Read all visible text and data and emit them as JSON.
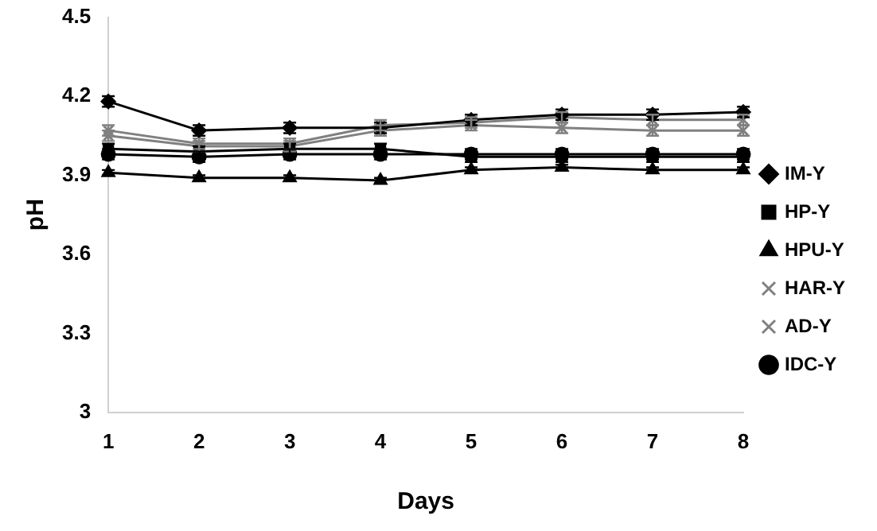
{
  "chart_data": {
    "type": "line",
    "xlabel": "Days",
    "ylabel": "pH",
    "categories": [
      "1",
      "2",
      "3",
      "4",
      "5",
      "6",
      "7",
      "8"
    ],
    "ylim": [
      3,
      4.5
    ],
    "yticks": [
      {
        "value": 3,
        "label": "3"
      },
      3.3,
      3.6,
      3.9,
      4.2,
      4.5
    ],
    "grid": false,
    "legend": "right",
    "series": [
      {
        "name": "IM-Y",
        "color": "#000000",
        "marker": "diamond",
        "values": [
          4.18,
          4.07,
          4.08,
          4.08,
          4.11,
          4.13,
          4.13,
          4.14
        ],
        "errors": [
          0.02,
          0.02,
          0.02,
          0.02,
          0.02,
          0.02,
          0.02,
          0.02
        ]
      },
      {
        "name": "HP-Y",
        "color": "#000000",
        "marker": "square",
        "values": [
          4.0,
          3.99,
          4.0,
          4.0,
          3.97,
          3.97,
          3.97,
          3.97
        ],
        "errors": [
          0.02,
          0.02,
          0.02,
          0.02,
          0.02,
          0.02,
          0.02,
          0.02
        ]
      },
      {
        "name": "HPU-Y",
        "color": "#000000",
        "marker": "triangle",
        "values": [
          3.91,
          3.89,
          3.89,
          3.88,
          3.92,
          3.93,
          3.92,
          3.92
        ],
        "errors": [
          0.01,
          0.01,
          0.01,
          0.01,
          0.01,
          0.01,
          0.01,
          0.01
        ]
      },
      {
        "name": "HAR-Y",
        "color": "#808080",
        "marker": "cross",
        "values": [
          4.05,
          4.01,
          4.01,
          4.07,
          4.09,
          4.08,
          4.07,
          4.07
        ],
        "errors": [
          0.02,
          0.02,
          0.02,
          0.02,
          0.02,
          0.02,
          0.02,
          0.02
        ]
      },
      {
        "name": "AD-Y",
        "color": "#808080",
        "marker": "cross",
        "values": [
          4.07,
          4.02,
          4.02,
          4.09,
          4.1,
          4.12,
          4.11,
          4.11
        ],
        "errors": [
          0.02,
          0.02,
          0.02,
          0.02,
          0.02,
          0.02,
          0.02,
          0.02
        ]
      },
      {
        "name": "IDC-Y",
        "color": "#000000",
        "marker": "circle",
        "values": [
          3.98,
          3.97,
          3.98,
          3.98,
          3.98,
          3.98,
          3.98,
          3.98
        ],
        "errors": [
          0.02,
          0.02,
          0.02,
          0.02,
          0.02,
          0.02,
          0.02,
          0.02
        ]
      }
    ]
  }
}
